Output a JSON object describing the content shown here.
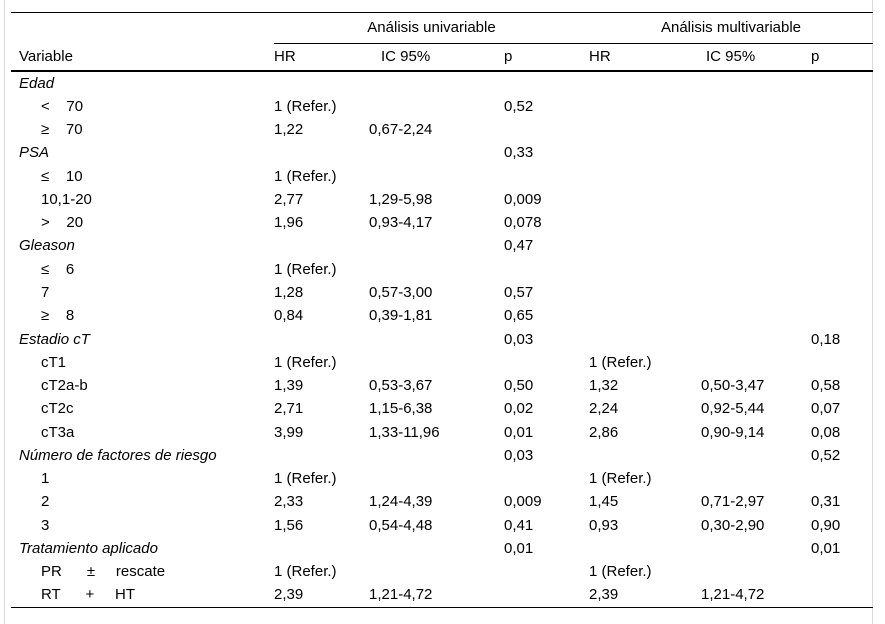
{
  "table": {
    "group_headers": {
      "univariable": "Análisis univariable",
      "multivariable": "Análisis multivariable"
    },
    "column_headers": {
      "variable": "Variable",
      "hr": "HR",
      "ic": "IC 95%",
      "p": "p"
    },
    "colors": {
      "text": "#000000",
      "background": "#ffffff",
      "rule": "#000000",
      "figure_edge": "#d9d9d9"
    },
    "rows": [
      {
        "type": "group",
        "label": "Edad",
        "hr_u": "",
        "ic_u": "",
        "p_u": "",
        "hr_m": "",
        "ic_m": "",
        "p_m": ""
      },
      {
        "type": "item",
        "label": "<    70",
        "hr_u": "1 (Refer.)",
        "ic_u": "",
        "p_u": "0,52",
        "hr_m": "",
        "ic_m": "",
        "p_m": ""
      },
      {
        "type": "item",
        "label": "≥    70",
        "hr_u": "1,22",
        "ic_u": "0,67-2,24",
        "p_u": "",
        "hr_m": "",
        "ic_m": "",
        "p_m": ""
      },
      {
        "type": "group",
        "label": "PSA",
        "hr_u": "",
        "ic_u": "",
        "p_u": "0,33",
        "hr_m": "",
        "ic_m": "",
        "p_m": ""
      },
      {
        "type": "item",
        "label": "≤    10",
        "hr_u": "1 (Refer.)",
        "ic_u": "",
        "p_u": "",
        "hr_m": "",
        "ic_m": "",
        "p_m": ""
      },
      {
        "type": "item",
        "label": "10,1-20",
        "hr_u": "2,77",
        "ic_u": "1,29-5,98",
        "p_u": "0,009",
        "hr_m": "",
        "ic_m": "",
        "p_m": ""
      },
      {
        "type": "item",
        "label": ">    20",
        "hr_u": "1,96",
        "ic_u": "0,93-4,17",
        "p_u": "0,078",
        "hr_m": "",
        "ic_m": "",
        "p_m": ""
      },
      {
        "type": "group",
        "label": "Gleason",
        "hr_u": "",
        "ic_u": "",
        "p_u": "0,47",
        "hr_m": "",
        "ic_m": "",
        "p_m": ""
      },
      {
        "type": "item",
        "label": "≤    6",
        "hr_u": "1 (Refer.)",
        "ic_u": "",
        "p_u": "",
        "hr_m": "",
        "ic_m": "",
        "p_m": ""
      },
      {
        "type": "item",
        "label": "7",
        "hr_u": "1,28",
        "ic_u": "0,57-3,00",
        "p_u": "0,57",
        "hr_m": "",
        "ic_m": "",
        "p_m": ""
      },
      {
        "type": "item",
        "label": "≥    8",
        "hr_u": "0,84",
        "ic_u": "0,39-1,81",
        "p_u": "0,65",
        "hr_m": "",
        "ic_m": "",
        "p_m": ""
      },
      {
        "type": "group",
        "label": "Estadio cT",
        "hr_u": "",
        "ic_u": "",
        "p_u": "0,03",
        "hr_m": "",
        "ic_m": "",
        "p_m": "0,18"
      },
      {
        "type": "item",
        "label": "cT1",
        "hr_u": "1 (Refer.)",
        "ic_u": "",
        "p_u": "",
        "hr_m": "1 (Refer.)",
        "ic_m": "",
        "p_m": ""
      },
      {
        "type": "item",
        "label": "cT2a-b",
        "hr_u": "1,39",
        "ic_u": "0,53-3,67",
        "p_u": "0,50",
        "hr_m": "1,32",
        "ic_m": "0,50-3,47",
        "p_m": "0,58"
      },
      {
        "type": "item",
        "label": "cT2c",
        "hr_u": "2,71",
        "ic_u": "1,15-6,38",
        "p_u": "0,02",
        "hr_m": "2,24",
        "ic_m": "0,92-5,44",
        "p_m": "0,07"
      },
      {
        "type": "item",
        "label": "cT3a",
        "hr_u": "3,99",
        "ic_u": "1,33-11,96",
        "p_u": "0,01",
        "hr_m": "2,86",
        "ic_m": "0,90-9,14",
        "p_m": "0,08"
      },
      {
        "type": "group",
        "label": "Número de factores de riesgo",
        "hr_u": "",
        "ic_u": "",
        "p_u": "0,03",
        "hr_m": "",
        "ic_m": "",
        "p_m": "0,52"
      },
      {
        "type": "item",
        "label": "1",
        "hr_u": "1 (Refer.)",
        "ic_u": "",
        "p_u": "",
        "hr_m": "1 (Refer.)",
        "ic_m": "",
        "p_m": ""
      },
      {
        "type": "item",
        "label": "2",
        "hr_u": "2,33",
        "ic_u": "1,24-4,39",
        "p_u": "0,009",
        "hr_m": "1,45",
        "ic_m": "0,71-2,97",
        "p_m": "0,31"
      },
      {
        "type": "item",
        "label": "3",
        "hr_u": "1,56",
        "ic_u": "0,54-4,48",
        "p_u": "0,41",
        "hr_m": "0,93",
        "ic_m": "0,30-2,90",
        "p_m": "0,90"
      },
      {
        "type": "group",
        "label": "Tratamiento aplicado",
        "hr_u": "",
        "ic_u": "",
        "p_u": "0,01",
        "hr_m": "",
        "ic_m": "",
        "p_m": "0,01"
      },
      {
        "type": "item",
        "label": "PR      ±     rescate",
        "hr_u": "1 (Refer.)",
        "ic_u": "",
        "p_u": "",
        "hr_m": "1 (Refer.)",
        "ic_m": "",
        "p_m": ""
      },
      {
        "type": "item",
        "label": "RT      +     HT",
        "hr_u": "2,39",
        "ic_u": "1,21-4,72",
        "p_u": "",
        "hr_m": "2,39",
        "ic_m": "1,21-4,72",
        "p_m": ""
      }
    ]
  }
}
